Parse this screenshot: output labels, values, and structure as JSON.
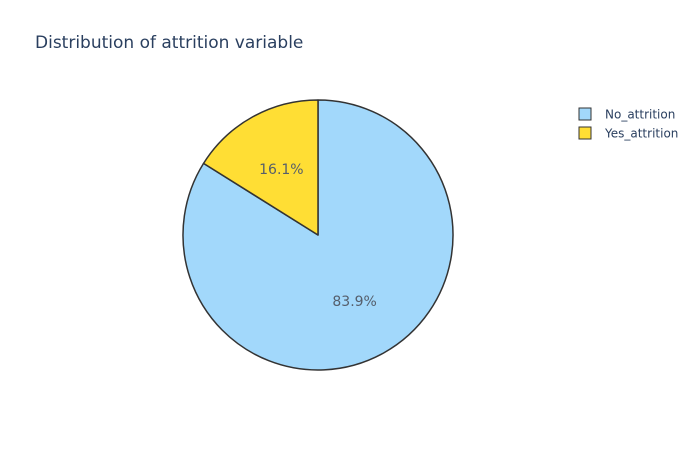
{
  "chart_data": {
    "type": "pie",
    "title": "Distribution of attrition variable",
    "labels": [
      "No_attrition",
      "Yes_attrition"
    ],
    "values": [
      83.9,
      16.1
    ],
    "text_labels": [
      "83.9%",
      "16.1%"
    ],
    "colors": [
      "#a2d8fb",
      "#ffde34"
    ],
    "outline_color": "#333333",
    "direction": "clockwise",
    "legend": "top-right"
  }
}
